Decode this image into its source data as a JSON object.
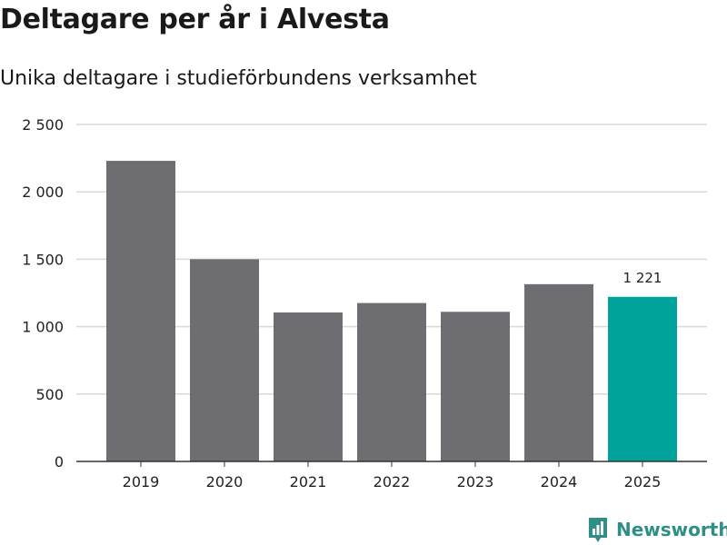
{
  "chart_data": {
    "type": "bar",
    "title": "Deltagare per år i Alvesta",
    "subtitle": "Unika deltagare i studieförbundens verksamhet",
    "categories": [
      "2019",
      "2020",
      "2021",
      "2022",
      "2023",
      "2024",
      "2025"
    ],
    "values": [
      2230,
      1500,
      1105,
      1175,
      1110,
      1315,
      1221
    ],
    "highlight_index": 6,
    "highlight_label": "1 221",
    "ylim": [
      0,
      2500
    ],
    "yticks": [
      0,
      500,
      1000,
      1500,
      2000,
      2500
    ],
    "ytick_labels": [
      "0",
      "500",
      "1 000",
      "1 500",
      "2 000",
      "2 500"
    ],
    "xlabel": "",
    "ylabel": "",
    "grid": true,
    "colors": {
      "bar": "#6e6d72",
      "highlight": "#00a39b",
      "grid": "#d9d9d9",
      "axis": "#333333"
    }
  },
  "brand": {
    "name": "Newsworthy",
    "icon": "newsworthy-logo-icon",
    "color": "#2f8f86"
  }
}
